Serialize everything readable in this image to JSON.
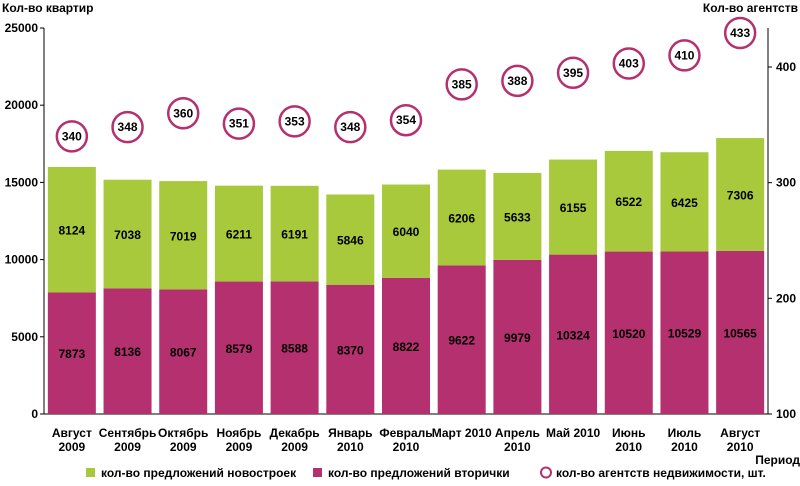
{
  "chart_data": {
    "type": "bar",
    "stacked": true,
    "left_axis_label": "Кол-во квартир",
    "right_axis_label": "Кол-во агентств",
    "xlabel": "Период",
    "categories": [
      [
        "Август",
        "2009"
      ],
      [
        "Сентябрь",
        "2009"
      ],
      [
        "Октябрь",
        "2009"
      ],
      [
        "Ноябрь",
        "2009"
      ],
      [
        "Декабрь",
        "2009"
      ],
      [
        "Январь",
        "2010"
      ],
      [
        "Февраль",
        "2010"
      ],
      [
        "Март 2010"
      ],
      [
        "Апрель",
        "2010"
      ],
      [
        "Май 2010"
      ],
      [
        "Июнь",
        "2010"
      ],
      [
        "Июль",
        "2010"
      ],
      [
        "Август",
        "2010"
      ]
    ],
    "ylim_left": [
      0,
      25000
    ],
    "yticks_left": [
      0,
      5000,
      10000,
      15000,
      20000,
      25000
    ],
    "ylim_right": [
      100,
      433
    ],
    "yticks_right": [
      100,
      200,
      300,
      400
    ],
    "series": [
      {
        "name": "кол-во предложений вторички",
        "color": "#b5306e",
        "values": [
          7873,
          8136,
          8067,
          8579,
          8588,
          8370,
          8822,
          9622,
          9979,
          10324,
          10520,
          10529,
          10565
        ]
      },
      {
        "name": "кол-во предложений новостроек",
        "color": "#a7c93b",
        "values": [
          8124,
          7038,
          7019,
          6211,
          6191,
          5846,
          6040,
          6206,
          5633,
          6155,
          6522,
          6425,
          7306
        ]
      }
    ],
    "markers": {
      "name": "кол-во агентств недвижимости, шт.",
      "color": "#b5306e",
      "values": [
        340,
        348,
        360,
        351,
        353,
        348,
        354,
        385,
        388,
        395,
        403,
        410,
        433
      ]
    },
    "legend": [
      {
        "label": "кол-во предложений новостроек",
        "kind": "square",
        "color": "#a7c93b"
      },
      {
        "label": "кол-во предложений вторички",
        "kind": "square",
        "color": "#b5306e"
      },
      {
        "label": "кол-во агентств недвижимости, шт.",
        "kind": "circle",
        "color": "#b5306e"
      }
    ]
  }
}
